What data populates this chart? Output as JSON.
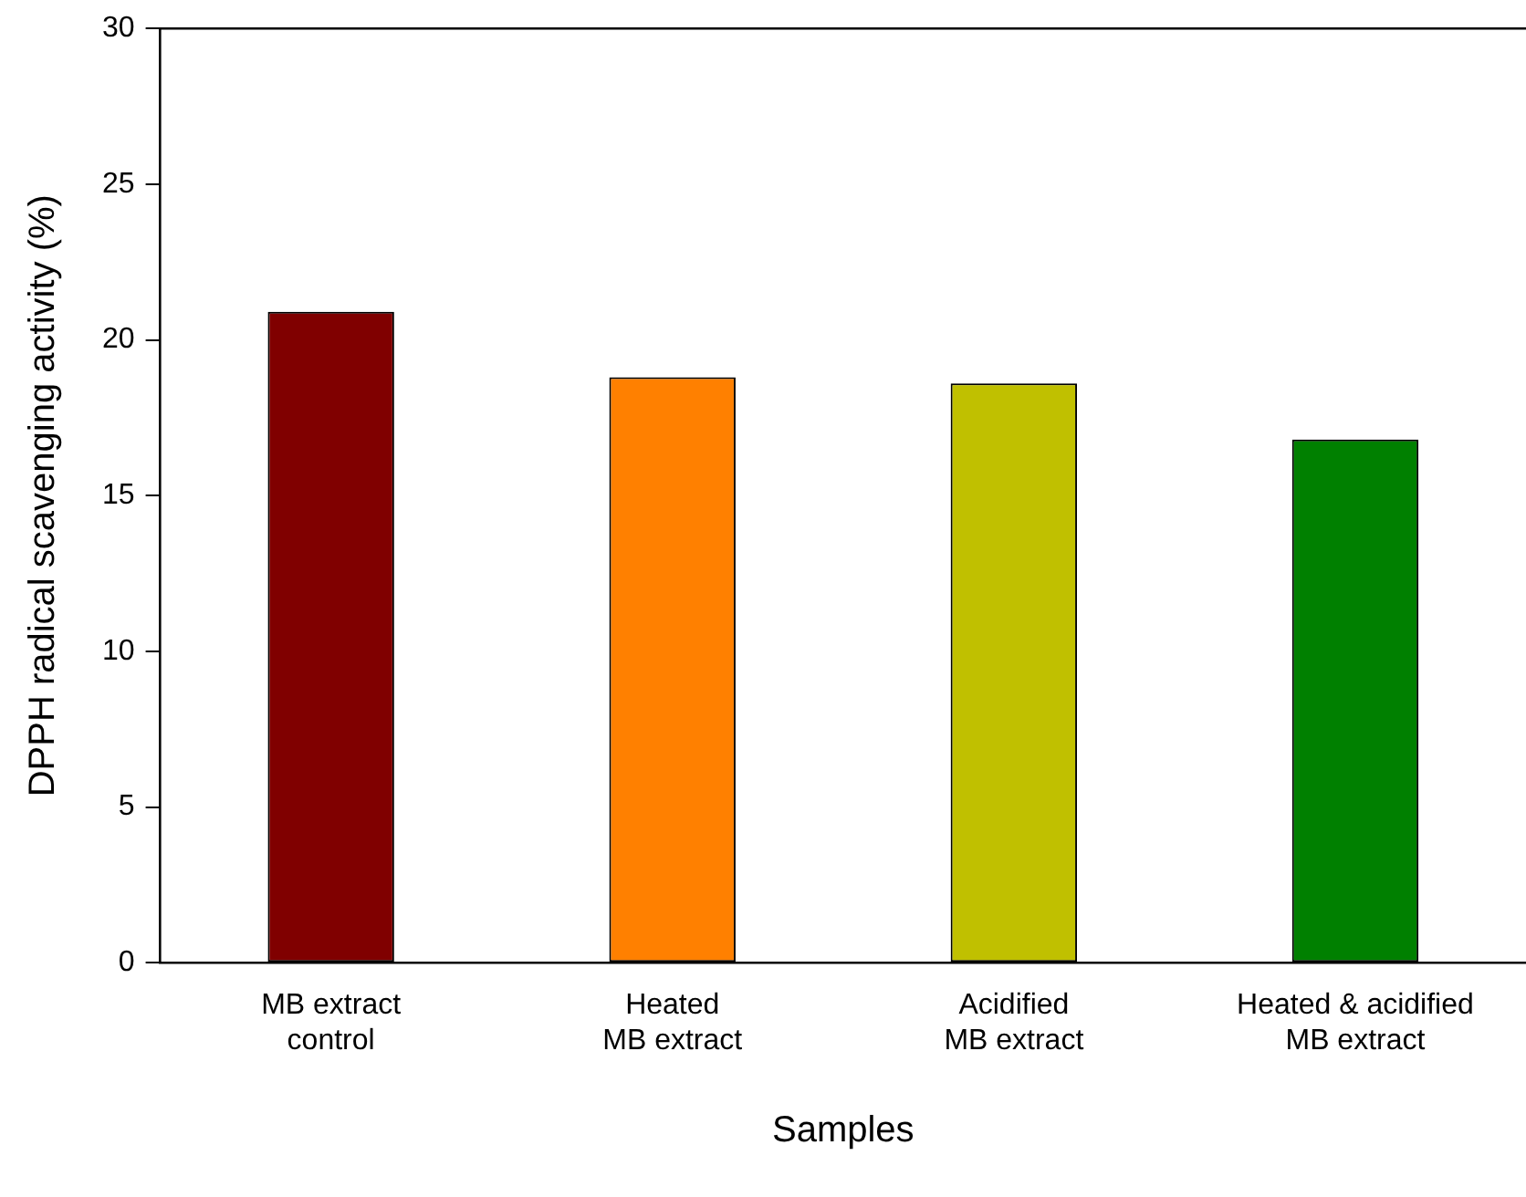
{
  "chart_data": {
    "type": "bar",
    "xlabel": "Samples",
    "ylabel": "DPPH radical scavenging activity (%)",
    "categories": [
      "MB extract\ncontrol",
      "Heated\nMB extract",
      "Acidified\nMB extract",
      "Heated & acidified\nMB extract"
    ],
    "values": [
      20.9,
      18.8,
      18.6,
      16.8
    ],
    "colors": [
      "#800000",
      "#ff8000",
      "#c0c000",
      "#008000"
    ],
    "ylim": [
      0,
      30
    ],
    "yticks": [
      0,
      5,
      10,
      15,
      20,
      25,
      30
    ],
    "grid": false,
    "legend": false
  }
}
